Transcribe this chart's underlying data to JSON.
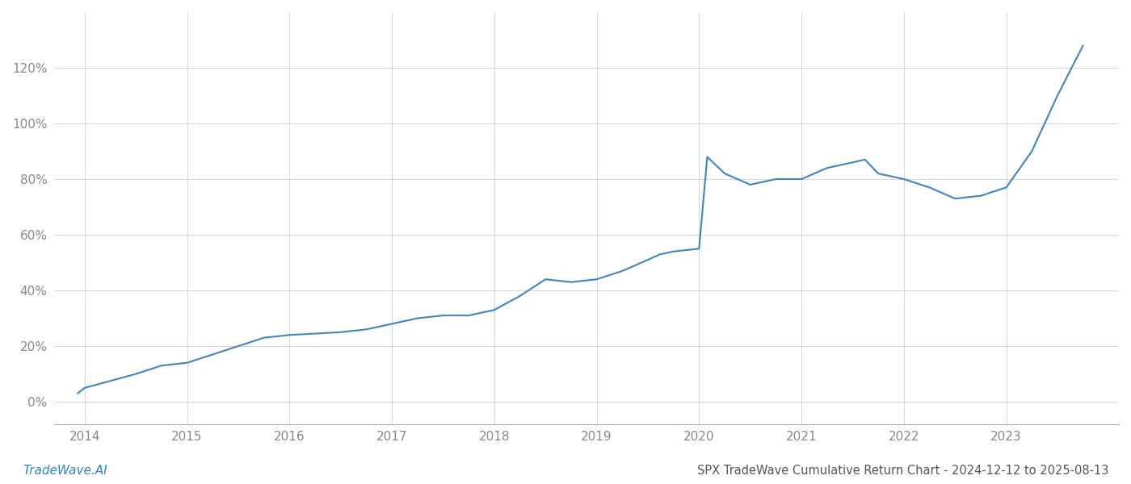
{
  "title": "SPX TradeWave Cumulative Return Chart - 2024-12-12 to 2025-08-13",
  "watermark": "TradeWave.AI",
  "line_color": "#3a86c8",
  "background_color": "#ffffff",
  "grid_color": "#d0d0d0",
  "x_years": [
    2013.93,
    2014.0,
    2014.5,
    2014.75,
    2015.0,
    2015.75,
    2016.0,
    2016.5,
    2016.75,
    2017.0,
    2017.25,
    2017.5,
    2017.75,
    2018.0,
    2018.25,
    2018.5,
    2018.75,
    2019.0,
    2019.25,
    2019.5,
    2019.62,
    2019.75,
    2020.0,
    2020.08,
    2020.25,
    2020.5,
    2020.75,
    2021.0,
    2021.25,
    2021.5,
    2021.62,
    2021.75,
    2022.0,
    2022.25,
    2022.5,
    2022.75,
    2023.0,
    2023.25,
    2023.5,
    2023.75
  ],
  "y_values": [
    3,
    5,
    10,
    13,
    14,
    23,
    24,
    25,
    26,
    28,
    30,
    31,
    31,
    33,
    38,
    44,
    43,
    44,
    47,
    51,
    53,
    54,
    55,
    88,
    82,
    78,
    80,
    80,
    84,
    86,
    87,
    82,
    80,
    77,
    73,
    74,
    77,
    90,
    110,
    128
  ],
  "xlim": [
    2013.7,
    2024.1
  ],
  "ylim": [
    -8,
    140
  ],
  "yticks": [
    0,
    20,
    40,
    60,
    80,
    100,
    120
  ],
  "xticks": [
    2014,
    2015,
    2016,
    2017,
    2018,
    2019,
    2020,
    2021,
    2022,
    2023
  ],
  "line_width": 1.5,
  "title_fontsize": 10.5,
  "watermark_fontsize": 11,
  "tick_fontsize": 11,
  "title_color": "#555555",
  "watermark_color": "#2e86c1",
  "tick_color": "#888888",
  "axis_color": "#aaaaaa"
}
